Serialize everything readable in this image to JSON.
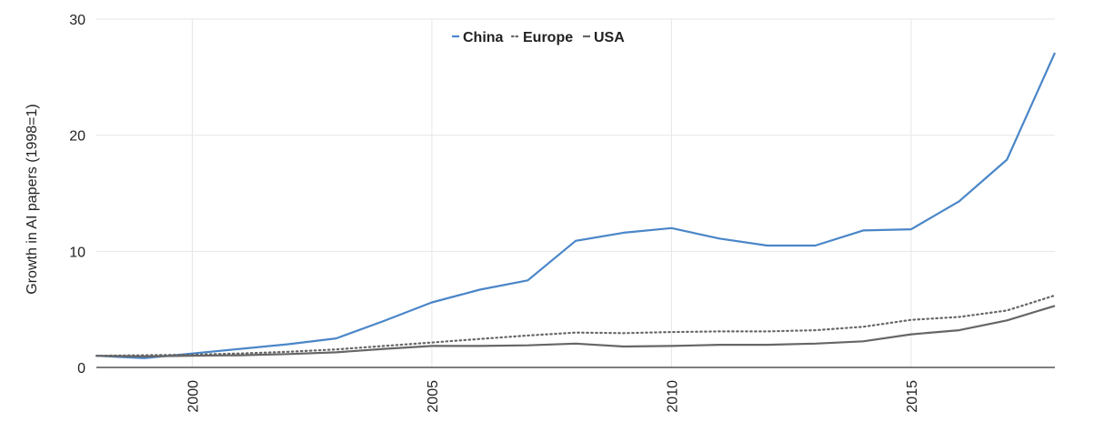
{
  "chart_data": {
    "type": "line",
    "title": "",
    "xlabel": "",
    "ylabel": "Growth in AI papers (1998=1)",
    "xlim": [
      1998,
      2018
    ],
    "ylim": [
      0,
      30
    ],
    "x": [
      1998,
      1999,
      2000,
      2001,
      2002,
      2003,
      2004,
      2005,
      2006,
      2007,
      2008,
      2009,
      2010,
      2011,
      2012,
      2013,
      2014,
      2015,
      2016,
      2017,
      2018
    ],
    "x_ticks": [
      "2000",
      "2005",
      "2010",
      "2015"
    ],
    "y_ticks": [
      "0",
      "10",
      "20",
      "30"
    ],
    "grid": true,
    "legend_position": "top-center",
    "series": [
      {
        "name": "China",
        "color": "#4a86c8",
        "dash": "solid",
        "values": [
          1.0,
          0.8,
          1.2,
          1.6,
          2.0,
          2.5,
          4.0,
          5.6,
          6.7,
          7.5,
          10.9,
          11.6,
          12.0,
          11.1,
          10.5,
          10.5,
          11.8,
          11.9,
          14.3,
          17.9,
          27.1
        ]
      },
      {
        "name": "Europe",
        "color": "#666666",
        "dash": "dotted",
        "values": [
          1.0,
          1.05,
          1.1,
          1.2,
          1.35,
          1.55,
          1.85,
          2.15,
          2.45,
          2.75,
          3.0,
          2.95,
          3.05,
          3.1,
          3.1,
          3.2,
          3.5,
          4.1,
          4.35,
          4.9,
          6.2
        ]
      },
      {
        "name": "USA",
        "color": "#666666",
        "dash": "solid",
        "values": [
          1.0,
          0.95,
          1.0,
          1.05,
          1.15,
          1.3,
          1.6,
          1.85,
          1.85,
          1.9,
          2.05,
          1.8,
          1.85,
          1.95,
          1.95,
          2.05,
          2.25,
          2.85,
          3.2,
          4.05,
          5.3
        ]
      }
    ]
  }
}
